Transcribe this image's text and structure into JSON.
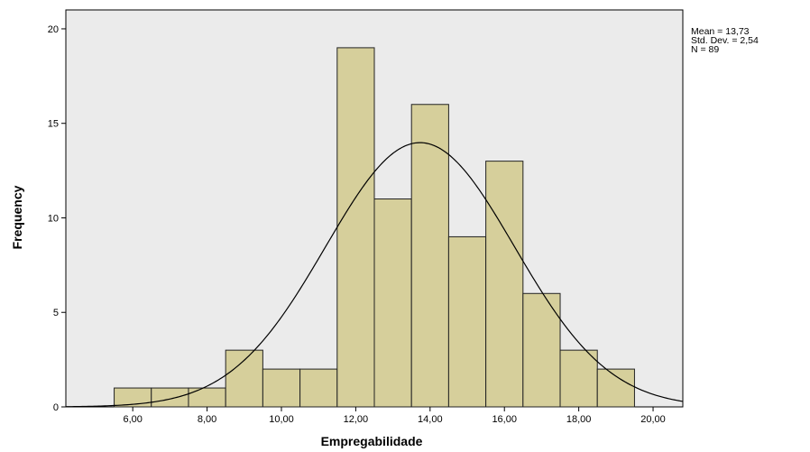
{
  "chart_data": {
    "type": "bar",
    "subtype": "histogram",
    "xlabel": "Empregabilidade",
    "ylabel": "Frequency",
    "bins": [
      {
        "from": 5.5,
        "to": 6.5,
        "count": 1
      },
      {
        "from": 6.5,
        "to": 7.5,
        "count": 1
      },
      {
        "from": 7.5,
        "to": 8.5,
        "count": 1
      },
      {
        "from": 8.5,
        "to": 9.5,
        "count": 3
      },
      {
        "from": 9.5,
        "to": 10.5,
        "count": 2
      },
      {
        "from": 10.5,
        "to": 11.5,
        "count": 2
      },
      {
        "from": 11.5,
        "to": 12.5,
        "count": 19
      },
      {
        "from": 12.5,
        "to": 13.5,
        "count": 11
      },
      {
        "from": 13.5,
        "to": 14.5,
        "count": 16
      },
      {
        "from": 14.5,
        "to": 15.5,
        "count": 9
      },
      {
        "from": 15.5,
        "to": 16.5,
        "count": 13
      },
      {
        "from": 16.5,
        "to": 17.5,
        "count": 6
      },
      {
        "from": 17.5,
        "to": 18.5,
        "count": 3
      },
      {
        "from": 18.5,
        "to": 19.5,
        "count": 2
      }
    ],
    "xlim": [
      4.2,
      20.8
    ],
    "ylim": [
      0,
      21
    ],
    "xticks": [
      6,
      8,
      10,
      12,
      14,
      16,
      18,
      20
    ],
    "xtick_labels": [
      "6,00",
      "8,00",
      "10,00",
      "12,00",
      "14,00",
      "16,00",
      "18,00",
      "20,00"
    ],
    "yticks": [
      0,
      5,
      10,
      15,
      20
    ],
    "ytick_labels": [
      "0",
      "5",
      "10",
      "15",
      "20"
    ],
    "normal_curve": {
      "mean": 13.73,
      "std_dev": 2.54,
      "n": 89,
      "bin_width": 1
    },
    "grid": false,
    "stats_text": [
      "Mean = 13,73",
      "Std. Dev. = 2,54",
      "N = 89"
    ],
    "colors": {
      "bar_fill": "#d6cf9b",
      "bar_stroke": "#222222",
      "plot_bg": "#ebebeb",
      "curve": "#000000"
    }
  }
}
